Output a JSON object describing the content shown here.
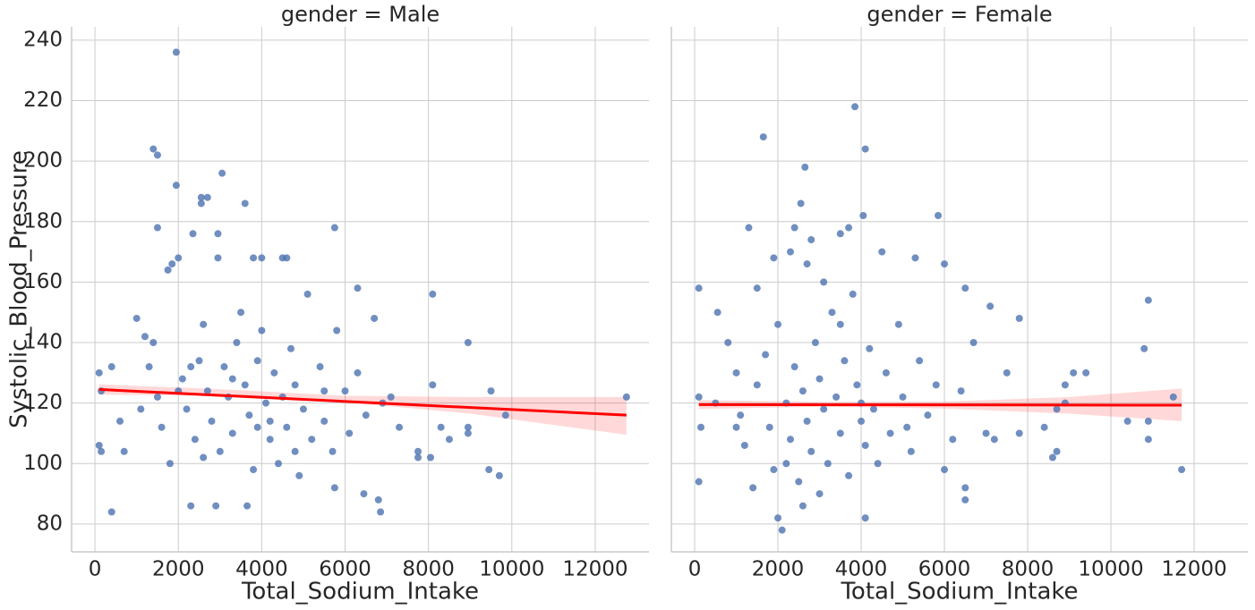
{
  "chart_data": [
    {
      "type": "scatter",
      "title": "gender = Male",
      "x_label": "Total_Sodium_Intake",
      "y_label": "Systolic_Blood_Pressure",
      "color": "#4c72b0",
      "line_color": "#ff0000",
      "grid": true,
      "xlim": [
        -560,
        13290
      ],
      "xticks": [
        0,
        2000,
        4000,
        6000,
        8000,
        10000,
        12000
      ],
      "ylim": [
        70.8,
        244.4
      ],
      "yticks": [
        80,
        100,
        120,
        140,
        160,
        180,
        200,
        220,
        240
      ],
      "x": [
        1950,
        1400,
        1500,
        1950,
        3050,
        2550,
        2700,
        3600,
        2550,
        1500,
        5750,
        2950,
        2350,
        2950,
        3800,
        4000,
        4500,
        4600,
        1850,
        1750,
        2000,
        6300,
        8100,
        8950,
        9500,
        9850,
        12750,
        9450,
        9700,
        8950,
        8950,
        7750,
        7750,
        8050,
        8100,
        8500,
        8300,
        6850,
        6800,
        6450,
        5750,
        3650,
        2300,
        2900,
        400,
        100,
        150,
        100,
        150,
        400,
        600,
        700,
        1000,
        1200,
        1300,
        1500,
        1600,
        1800,
        2100,
        2200,
        2400,
        2500,
        2600,
        2700,
        2800,
        3000,
        3100,
        3200,
        3300,
        3400,
        3500,
        3600,
        3700,
        3800,
        3900,
        4000,
        4100,
        4200,
        4300,
        4400,
        4500,
        4600,
        4700,
        4800,
        4900,
        5000,
        5100,
        5200,
        5400,
        5500,
        5700,
        5800,
        6000,
        6100,
        6300,
        6500,
        6700,
        6900,
        7100,
        7300,
        1100,
        2000,
        2300,
        3300,
        4200,
        1400,
        2600,
        3900,
        4800,
        5500
      ],
      "y": [
        236,
        204,
        202,
        192,
        196,
        188,
        188,
        186,
        186,
        178,
        178,
        176,
        176,
        168,
        168,
        168,
        168,
        168,
        166,
        164,
        168,
        158,
        156,
        140,
        124,
        116,
        122,
        98,
        96,
        112,
        110,
        104,
        102,
        102,
        126,
        108,
        112,
        84,
        88,
        90,
        92,
        86,
        86,
        86,
        84,
        106,
        104,
        130,
        124,
        132,
        114,
        104,
        148,
        142,
        132,
        122,
        112,
        100,
        128,
        118,
        108,
        134,
        146,
        124,
        114,
        104,
        132,
        122,
        110,
        140,
        150,
        126,
        116,
        98,
        134,
        144,
        120,
        108,
        130,
        100,
        122,
        112,
        138,
        126,
        96,
        118,
        156,
        108,
        132,
        114,
        104,
        144,
        124,
        110,
        130,
        116,
        148,
        120,
        122,
        112,
        118,
        124,
        132,
        128,
        114,
        140,
        102,
        112,
        104,
        124
      ],
      "regression": {
        "x": [
          100,
          12750
        ],
        "y": [
          124.5,
          116
        ]
      },
      "band": {
        "x": [
          100,
          3000,
          6000,
          9000,
          12750
        ],
        "lower": [
          122.8,
          122.4,
          120.3,
          116.5,
          109.5
        ],
        "upper": [
          126.2,
          124.6,
          122.4,
          122,
          122
        ]
      }
    },
    {
      "type": "scatter",
      "title": "gender = Female",
      "x_label": "Total_Sodium_Intake",
      "sharey": true,
      "color": "#4c72b0",
      "line_color": "#ff0000",
      "grid": true,
      "xlim": [
        -560,
        13290
      ],
      "xticks": [
        0,
        2000,
        4000,
        6000,
        8000,
        10000,
        12000
      ],
      "x": [
        3850,
        1650,
        4100,
        2650,
        2550,
        4050,
        5850,
        1300,
        2400,
        3700,
        3500,
        2800,
        4500,
        2300,
        1900,
        2700,
        6000,
        5300,
        100,
        1500,
        3100,
        6500,
        7100,
        7800,
        10900,
        10800,
        9400,
        9100,
        8900,
        8900,
        10400,
        10900,
        10900,
        11700,
        11500,
        8700,
        8600,
        8700,
        7800,
        7200,
        7000,
        6500,
        6500,
        4100,
        2000,
        2100,
        2600,
        100,
        100,
        150,
        500,
        550,
        800,
        1000,
        1100,
        1200,
        1400,
        1500,
        1700,
        1800,
        1900,
        2000,
        2200,
        2300,
        2400,
        2500,
        2600,
        2700,
        2800,
        2900,
        3000,
        3100,
        3200,
        3300,
        3400,
        3500,
        3600,
        3700,
        3800,
        3900,
        4000,
        4100,
        4200,
        4300,
        4400,
        4600,
        4700,
        4900,
        5000,
        5200,
        5400,
        5600,
        5800,
        6000,
        6200,
        6400,
        6700,
        7500,
        8400,
        1000,
        3000,
        3500,
        4000,
        2200,
        5100
      ],
      "y": [
        218,
        208,
        204,
        198,
        186,
        182,
        182,
        178,
        178,
        178,
        176,
        174,
        170,
        170,
        168,
        166,
        166,
        168,
        158,
        158,
        160,
        158,
        152,
        148,
        154,
        138,
        130,
        130,
        126,
        120,
        114,
        114,
        108,
        98,
        122,
        118,
        102,
        104,
        110,
        108,
        110,
        92,
        88,
        82,
        82,
        78,
        86,
        94,
        122,
        112,
        120,
        150,
        140,
        130,
        116,
        106,
        92,
        126,
        136,
        112,
        98,
        146,
        120,
        108,
        132,
        94,
        124,
        114,
        104,
        140,
        128,
        118,
        100,
        150,
        122,
        110,
        134,
        96,
        156,
        126,
        114,
        106,
        138,
        118,
        100,
        130,
        110,
        146,
        122,
        104,
        134,
        116,
        126,
        98,
        108,
        124,
        140,
        130,
        112,
        112,
        90,
        146,
        120,
        100,
        112
      ],
      "regression": {
        "x": [
          100,
          11700
        ],
        "y": [
          119.5,
          119.3
        ]
      },
      "band": {
        "x": [
          100,
          3000,
          6000,
          9000,
          11700
        ],
        "lower": [
          118,
          118.8,
          118.2,
          116.5,
          114
        ],
        "upper": [
          121,
          120.4,
          120.5,
          122,
          124.8
        ]
      }
    }
  ]
}
